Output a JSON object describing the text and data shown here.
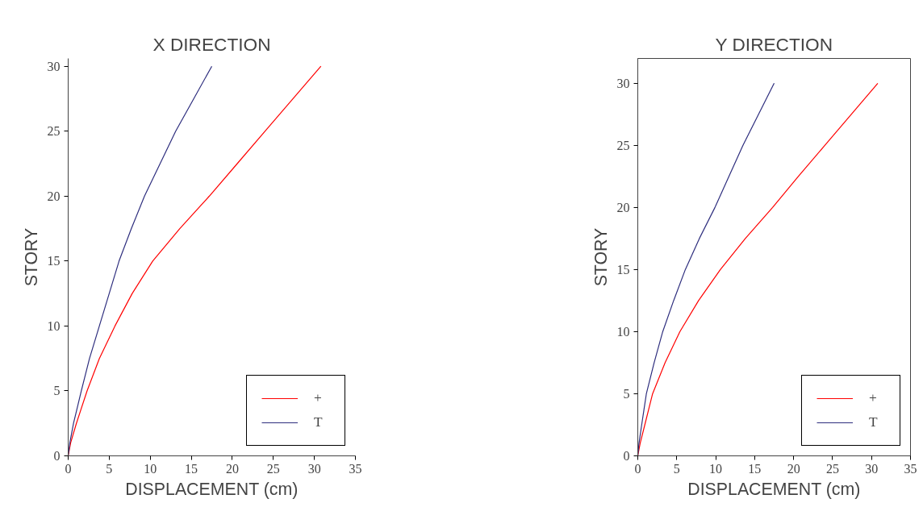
{
  "chart_data": [
    {
      "type": "line",
      "title": "X DIRECTION",
      "xlabel": "DISPLACEMENT (cm)",
      "ylabel": "STORY",
      "xlim": [
        0,
        35
      ],
      "ylim": [
        0,
        30.6
      ],
      "xticks": [
        0,
        5,
        10,
        15,
        20,
        25,
        30,
        35
      ],
      "yticks": [
        0,
        5,
        10,
        15,
        20,
        25,
        30
      ],
      "grid": false,
      "legend": "bottom right",
      "series": [
        {
          "name": "+",
          "color": "#ff0000",
          "x": [
            0,
            0.3,
            1.0,
            2.3,
            3.8,
            5.7,
            7.8,
            10.3,
            13.6,
            17.2,
            20.6,
            24.0,
            27.4,
            30.8
          ],
          "values": [
            0,
            1,
            2.5,
            5,
            7.5,
            10,
            12.5,
            15,
            17.5,
            20,
            22.5,
            25,
            27.5,
            30
          ]
        },
        {
          "name": "T",
          "color": "#2e2e7e",
          "x": [
            0,
            0.2,
            0.65,
            1.6,
            2.6,
            3.8,
            5.0,
            6.2,
            7.7,
            9.3,
            11.2,
            13.1,
            15.3,
            17.5
          ],
          "values": [
            0,
            1,
            2.5,
            5,
            7.5,
            10,
            12.5,
            15,
            17.5,
            20,
            22.5,
            25,
            27.5,
            30
          ]
        }
      ]
    },
    {
      "type": "line",
      "title": "Y DIRECTION",
      "xlabel": "DISPLACEMENT (cm)",
      "ylabel": "STORY",
      "xlim": [
        0,
        35
      ],
      "ylim": [
        0,
        32
      ],
      "xticks": [
        0,
        5,
        10,
        15,
        20,
        25,
        30,
        35
      ],
      "yticks": [
        0,
        5,
        10,
        15,
        20,
        25,
        30
      ],
      "grid": false,
      "legend": "bottom right",
      "series": [
        {
          "name": "+",
          "color": "#ff0000",
          "x": [
            0,
            0.3,
            0.9,
            1.9,
            3.5,
            5.4,
            7.8,
            10.6,
            13.8,
            17.3,
            20.6,
            24.0,
            27.4,
            30.8
          ],
          "values": [
            0,
            1,
            2.5,
            5,
            7.5,
            10,
            12.5,
            15,
            17.5,
            20,
            22.5,
            25,
            27.5,
            30
          ]
        },
        {
          "name": "T",
          "color": "#2e2e7e",
          "x": [
            0,
            0.15,
            0.5,
            1.1,
            2.1,
            3.2,
            4.6,
            6.1,
            7.9,
            9.9,
            11.7,
            13.5,
            15.5,
            17.5
          ],
          "values": [
            0,
            1,
            2.5,
            5,
            7.5,
            10,
            12.5,
            15,
            17.5,
            20,
            22.5,
            25,
            27.5,
            30
          ]
        }
      ]
    }
  ]
}
